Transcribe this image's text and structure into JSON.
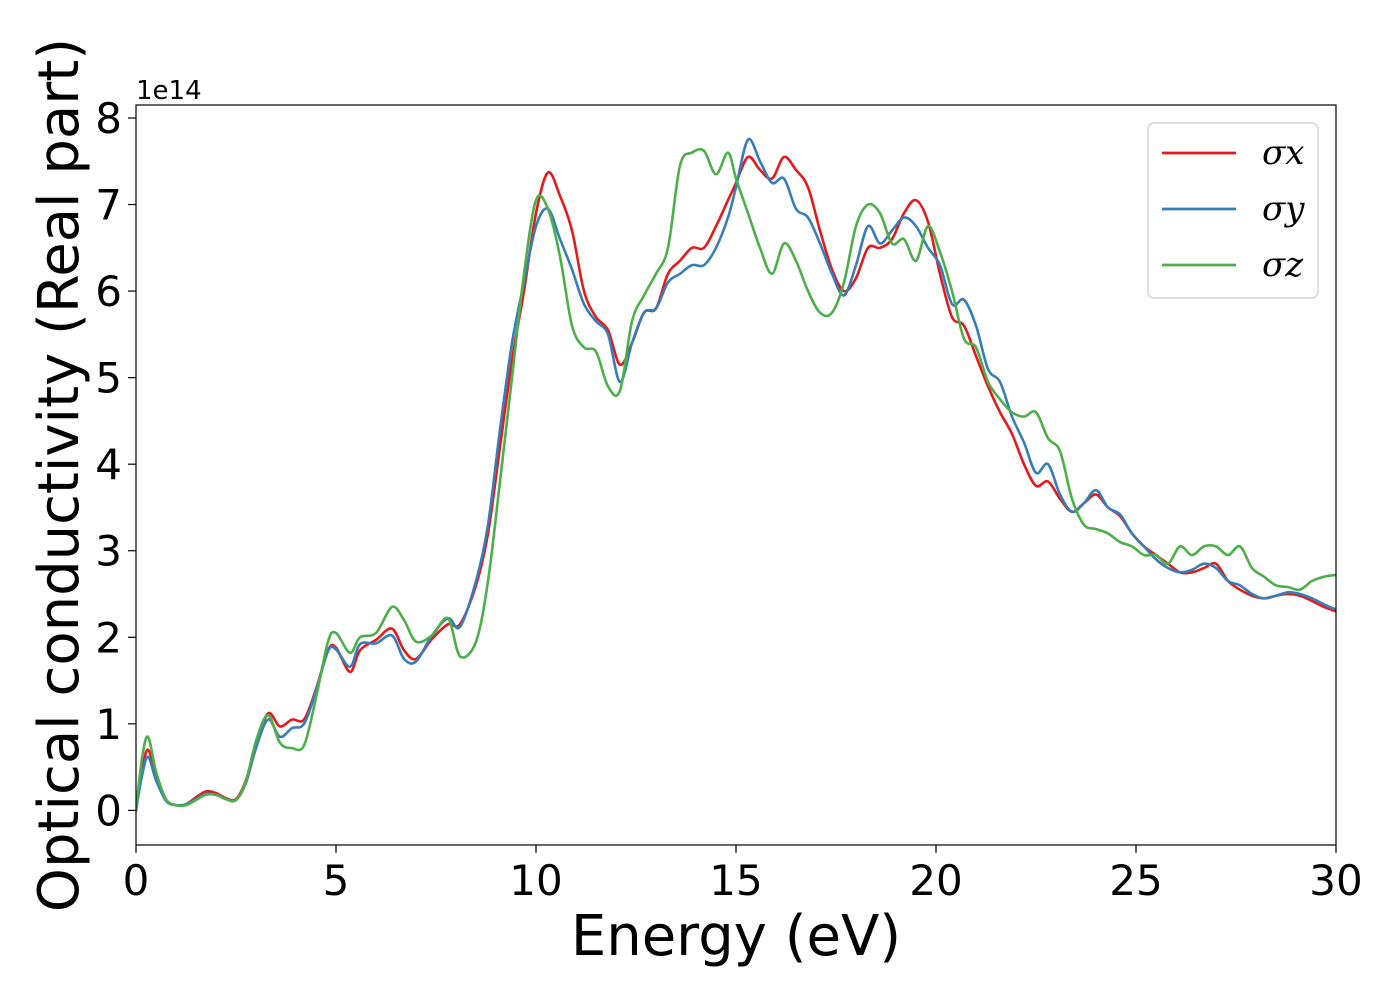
{
  "chart_data": {
    "type": "line",
    "title": "",
    "xlabel": "Energy (eV)",
    "ylabel": "Optical conductivity (Real part)",
    "y_offset_label": "1e14",
    "xlim": [
      0,
      30
    ],
    "ylim": [
      -0.4,
      8.15
    ],
    "x_ticks": [
      0,
      5,
      10,
      15,
      20,
      25,
      30
    ],
    "x_tick_labels": [
      "0",
      "5",
      "10",
      "15",
      "20",
      "25",
      "30"
    ],
    "y_ticks": [
      0,
      1,
      2,
      3,
      4,
      5,
      6,
      7,
      8
    ],
    "y_tick_labels": [
      "0",
      "1",
      "2",
      "3",
      "4",
      "5",
      "6",
      "7",
      "8"
    ],
    "grid": false,
    "legend_position": "top-right",
    "x": [
      0,
      0.15,
      0.3,
      0.5,
      0.75,
      1.0,
      1.25,
      1.5,
      1.75,
      2.0,
      2.25,
      2.5,
      2.75,
      3.0,
      3.3,
      3.6,
      3.9,
      4.2,
      4.5,
      4.8,
      5.0,
      5.35,
      5.6,
      6.0,
      6.4,
      6.7,
      7.0,
      7.4,
      7.8,
      8.1,
      8.5,
      8.8,
      9.1,
      9.4,
      9.7,
      10.0,
      10.3,
      10.6,
      10.9,
      11.2,
      11.5,
      11.8,
      12.1,
      12.4,
      12.7,
      13.0,
      13.3,
      13.6,
      13.9,
      14.2,
      14.5,
      14.8,
      15.0,
      15.3,
      15.6,
      15.9,
      16.2,
      16.5,
      16.8,
      17.1,
      17.4,
      17.7,
      18.0,
      18.3,
      18.6,
      18.9,
      19.2,
      19.5,
      19.8,
      20.1,
      20.4,
      20.7,
      21.0,
      21.3,
      21.6,
      21.9,
      22.2,
      22.5,
      22.8,
      23.1,
      23.4,
      23.7,
      24.0,
      24.3,
      24.6,
      24.9,
      25.2,
      25.5,
      25.8,
      26.1,
      26.4,
      26.7,
      27.0,
      27.3,
      27.6,
      27.9,
      28.2,
      28.5,
      28.8,
      29.1,
      29.4,
      29.7,
      30.0
    ],
    "series": [
      {
        "name": "σx",
        "color": "#e41a1c",
        "values": [
          0.0,
          0.45,
          0.7,
          0.4,
          0.12,
          0.06,
          0.07,
          0.15,
          0.22,
          0.2,
          0.14,
          0.13,
          0.35,
          0.75,
          1.12,
          0.97,
          1.05,
          1.05,
          1.4,
          1.85,
          1.88,
          1.6,
          1.85,
          1.97,
          2.1,
          1.85,
          1.75,
          1.98,
          2.15,
          2.15,
          2.6,
          3.2,
          4.2,
          5.2,
          6.0,
          6.9,
          7.37,
          7.1,
          6.7,
          6.0,
          5.7,
          5.55,
          5.15,
          5.4,
          5.75,
          5.8,
          6.2,
          6.35,
          6.5,
          6.5,
          6.75,
          7.05,
          7.25,
          7.55,
          7.4,
          7.3,
          7.55,
          7.4,
          7.2,
          6.7,
          6.25,
          6.0,
          6.15,
          6.5,
          6.5,
          6.6,
          6.9,
          7.05,
          6.8,
          6.2,
          5.7,
          5.6,
          5.25,
          4.9,
          4.6,
          4.35,
          4.0,
          3.75,
          3.8,
          3.6,
          3.45,
          3.55,
          3.65,
          3.5,
          3.4,
          3.2,
          3.05,
          2.95,
          2.85,
          2.75,
          2.75,
          2.8,
          2.85,
          2.65,
          2.55,
          2.48,
          2.45,
          2.48,
          2.5,
          2.48,
          2.42,
          2.35,
          2.3
        ]
      },
      {
        "name": "σy",
        "color": "#377eb8",
        "values": [
          0.0,
          0.4,
          0.62,
          0.35,
          0.11,
          0.06,
          0.07,
          0.13,
          0.19,
          0.18,
          0.13,
          0.12,
          0.32,
          0.72,
          1.05,
          0.85,
          0.95,
          1.0,
          1.38,
          1.84,
          1.86,
          1.66,
          1.92,
          1.93,
          2.02,
          1.75,
          1.72,
          2.02,
          2.22,
          2.12,
          2.65,
          3.3,
          4.4,
          5.4,
          6.1,
          6.75,
          6.95,
          6.6,
          6.25,
          5.85,
          5.65,
          5.5,
          4.95,
          5.4,
          5.75,
          5.8,
          6.1,
          6.2,
          6.3,
          6.3,
          6.5,
          6.85,
          7.2,
          7.75,
          7.5,
          7.25,
          7.3,
          6.95,
          6.85,
          6.55,
          6.2,
          5.95,
          6.3,
          6.75,
          6.55,
          6.7,
          6.85,
          6.75,
          6.5,
          6.3,
          5.85,
          5.9,
          5.6,
          5.1,
          4.95,
          4.55,
          4.25,
          3.9,
          4.0,
          3.65,
          3.45,
          3.55,
          3.7,
          3.5,
          3.42,
          3.2,
          3.05,
          2.9,
          2.8,
          2.75,
          2.78,
          2.85,
          2.8,
          2.65,
          2.6,
          2.5,
          2.45,
          2.48,
          2.52,
          2.5,
          2.45,
          2.38,
          2.32
        ]
      },
      {
        "name": "σz",
        "color": "#4daf4a",
        "values": [
          0.0,
          0.6,
          0.85,
          0.45,
          0.13,
          0.06,
          0.06,
          0.12,
          0.18,
          0.18,
          0.13,
          0.12,
          0.34,
          0.8,
          1.1,
          0.78,
          0.72,
          0.75,
          1.3,
          1.95,
          2.05,
          1.82,
          2.0,
          2.05,
          2.35,
          2.2,
          1.95,
          2.02,
          2.22,
          1.78,
          1.95,
          2.65,
          3.8,
          5.0,
          6.2,
          7.05,
          6.95,
          6.4,
          5.6,
          5.35,
          5.3,
          4.9,
          4.85,
          5.65,
          5.95,
          6.2,
          6.5,
          7.45,
          7.6,
          7.62,
          7.35,
          7.6,
          7.3,
          6.9,
          6.5,
          6.2,
          6.55,
          6.35,
          6.0,
          5.75,
          5.75,
          6.1,
          6.75,
          7.0,
          6.9,
          6.55,
          6.6,
          6.35,
          6.75,
          6.45,
          6.0,
          5.45,
          5.35,
          4.95,
          4.75,
          4.6,
          4.55,
          4.6,
          4.3,
          4.15,
          3.6,
          3.3,
          3.25,
          3.2,
          3.1,
          3.05,
          2.95,
          2.95,
          2.85,
          3.05,
          2.95,
          3.05,
          3.05,
          2.95,
          3.05,
          2.8,
          2.7,
          2.6,
          2.58,
          2.55,
          2.65,
          2.7,
          2.72
        ]
      }
    ]
  }
}
